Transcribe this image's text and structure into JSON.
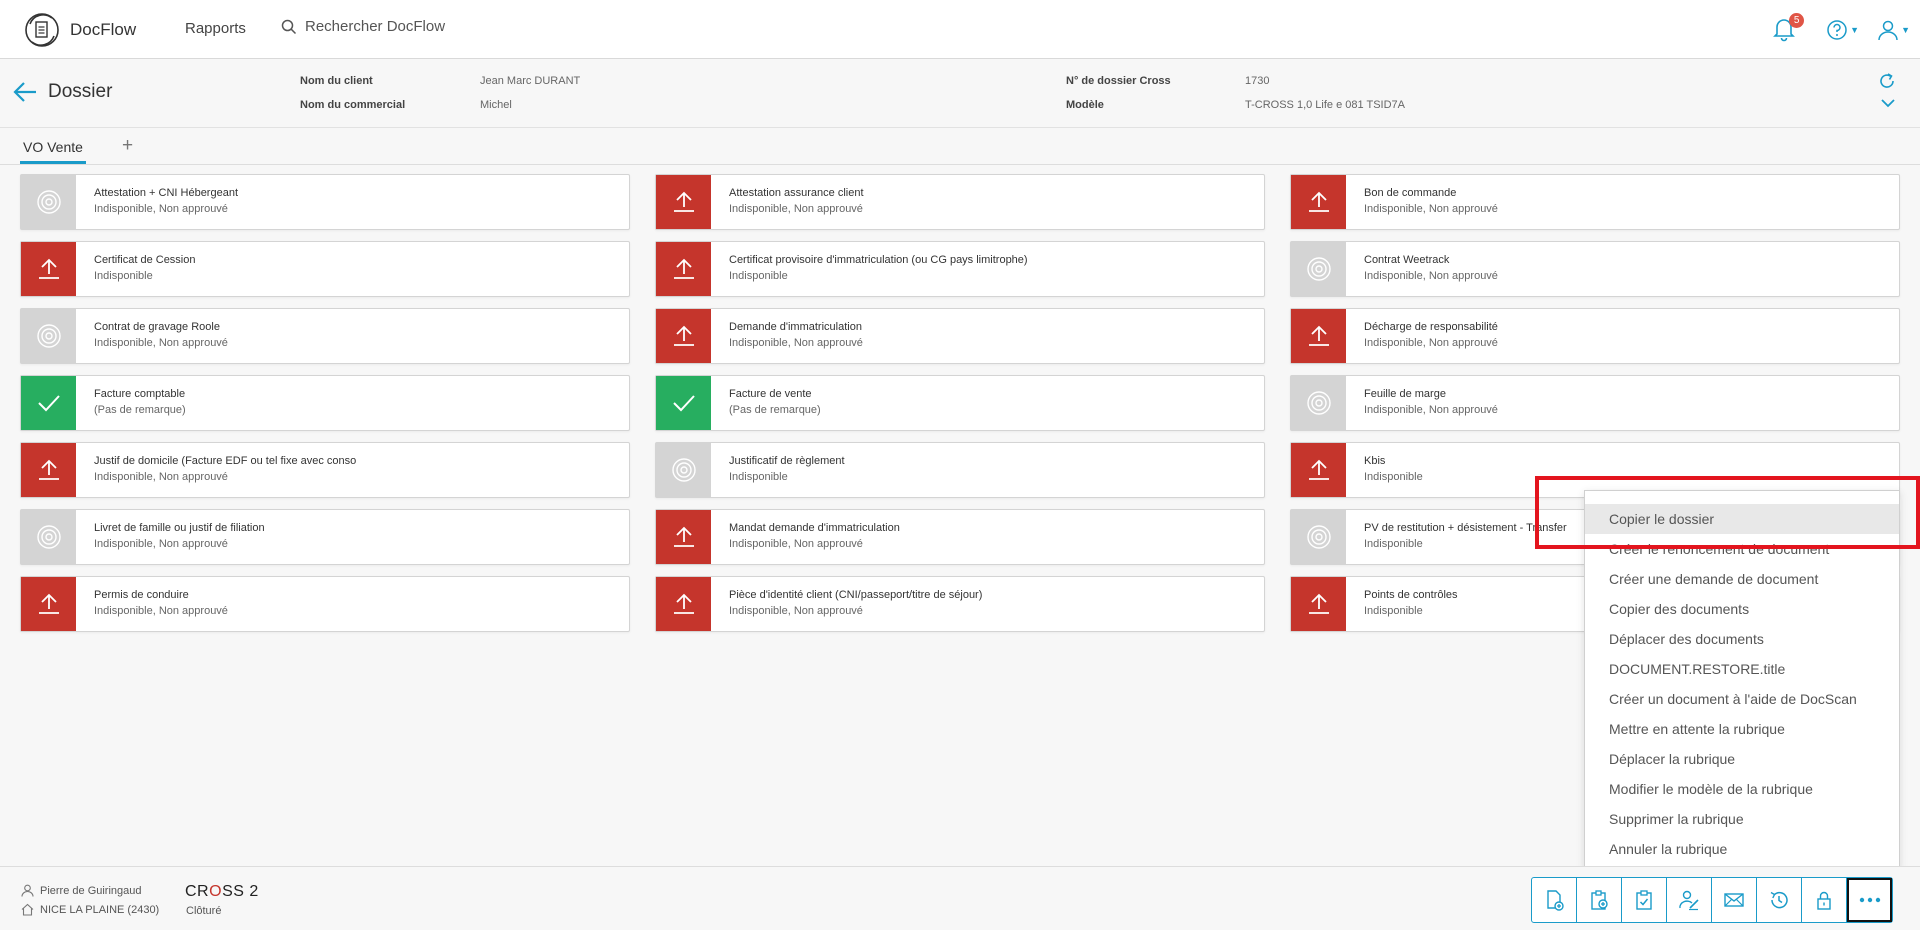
{
  "nav": {
    "app_name": "DocFlow",
    "reports": "Rapports",
    "search_placeholder": "Rechercher DocFlow",
    "notification_count": "5",
    "accent_color": "#1a9bc9"
  },
  "header": {
    "title": "Dossier",
    "client_label": "Nom du client",
    "client_value": "Jean Marc DURANT",
    "commercial_label": "Nom du commercial",
    "commercial_value": "Michel",
    "dossier_label": "N° de dossier Cross",
    "dossier_value": "1730",
    "model_label": "Modèle",
    "model_value": "T-CROSS 1,0 Life e 081 TSID7A"
  },
  "tabs": {
    "active": "VO Vente",
    "add": "+"
  },
  "documents": [
    {
      "title": "Attestation + CNI Hébergeant",
      "status": "Indisponible, Non approuvé",
      "icon": "pending"
    },
    {
      "title": "Attestation assurance client",
      "status": "Indisponible, Non approuvé",
      "icon": "upload"
    },
    {
      "title": "Bon de commande",
      "status": "Indisponible, Non approuvé",
      "icon": "upload"
    },
    {
      "title": "Certificat de Cession",
      "status": "Indisponible",
      "icon": "upload"
    },
    {
      "title": "Certificat provisoire d'immatriculation (ou CG pays limitrophe)",
      "status": "Indisponible",
      "icon": "upload"
    },
    {
      "title": "Contrat Weetrack",
      "status": "Indisponible, Non approuvé",
      "icon": "pending"
    },
    {
      "title": "Contrat de gravage Roole",
      "status": "Indisponible, Non approuvé",
      "icon": "pending"
    },
    {
      "title": "Demande d'immatriculation",
      "status": "Indisponible, Non approuvé",
      "icon": "upload"
    },
    {
      "title": "Décharge de responsabilité",
      "status": "Indisponible, Non approuvé",
      "icon": "upload"
    },
    {
      "title": "Facture comptable",
      "status": "(Pas de remarque)",
      "icon": "ok"
    },
    {
      "title": "Facture de vente",
      "status": "(Pas de remarque)",
      "icon": "ok"
    },
    {
      "title": "Feuille de marge",
      "status": "Indisponible, Non approuvé",
      "icon": "pending"
    },
    {
      "title": "Justif de domicile (Facture EDF ou tel fixe avec conso",
      "status": "Indisponible, Non approuvé",
      "icon": "upload"
    },
    {
      "title": "Justificatif de règlement",
      "status": "Indisponible",
      "icon": "pending"
    },
    {
      "title": "Kbis",
      "status": "Indisponible",
      "icon": "upload"
    },
    {
      "title": "Livret de famille ou justif de filiation",
      "status": "Indisponible, Non approuvé",
      "icon": "pending"
    },
    {
      "title": "Mandat demande d'immatriculation",
      "status": "Indisponible, Non approuvé",
      "icon": "upload"
    },
    {
      "title": "PV de restitution + désistement - Transfer",
      "status": "Indisponible",
      "icon": "pending"
    },
    {
      "title": "Permis de conduire",
      "status": "Indisponible, Non approuvé",
      "icon": "upload"
    },
    {
      "title": "Pièce d'identité client (CNI/passeport/titre de séjour)",
      "status": "Indisponible, Non approuvé",
      "icon": "upload"
    },
    {
      "title": "Points de contrôles",
      "status": "Indisponible",
      "icon": "upload"
    }
  ],
  "menu": {
    "items": [
      "Copier le dossier",
      "Créer le renoncement de document",
      "Créer une demande de document",
      "Copier des documents",
      "Déplacer des documents",
      "DOCUMENT.RESTORE.title",
      "Créer un document à l'aide de DocScan",
      "Mettre en attente la rubrique",
      "Déplacer la rubrique",
      "Modifier le modèle de la rubrique",
      "Supprimer la rubrique",
      "Annuler la rubrique"
    ]
  },
  "footer": {
    "user": "Pierre de Guiringaud",
    "site": "NICE LA PLAINE (2430)",
    "brand_pre": "CR",
    "brand_o": "O",
    "brand_post": "SS 2",
    "status": "Clôturé"
  },
  "toolbar": {
    "icons": [
      "add-document-icon",
      "add-to-clipboard-icon",
      "checklist-icon",
      "user-sign-icon",
      "mail-icon",
      "history-icon",
      "lock-icon",
      "more-icon"
    ]
  },
  "colors": {
    "upload": "#c5352c",
    "ok": "#27ae60",
    "pending": "#d4d4d4",
    "highlight": "#e3151e"
  }
}
